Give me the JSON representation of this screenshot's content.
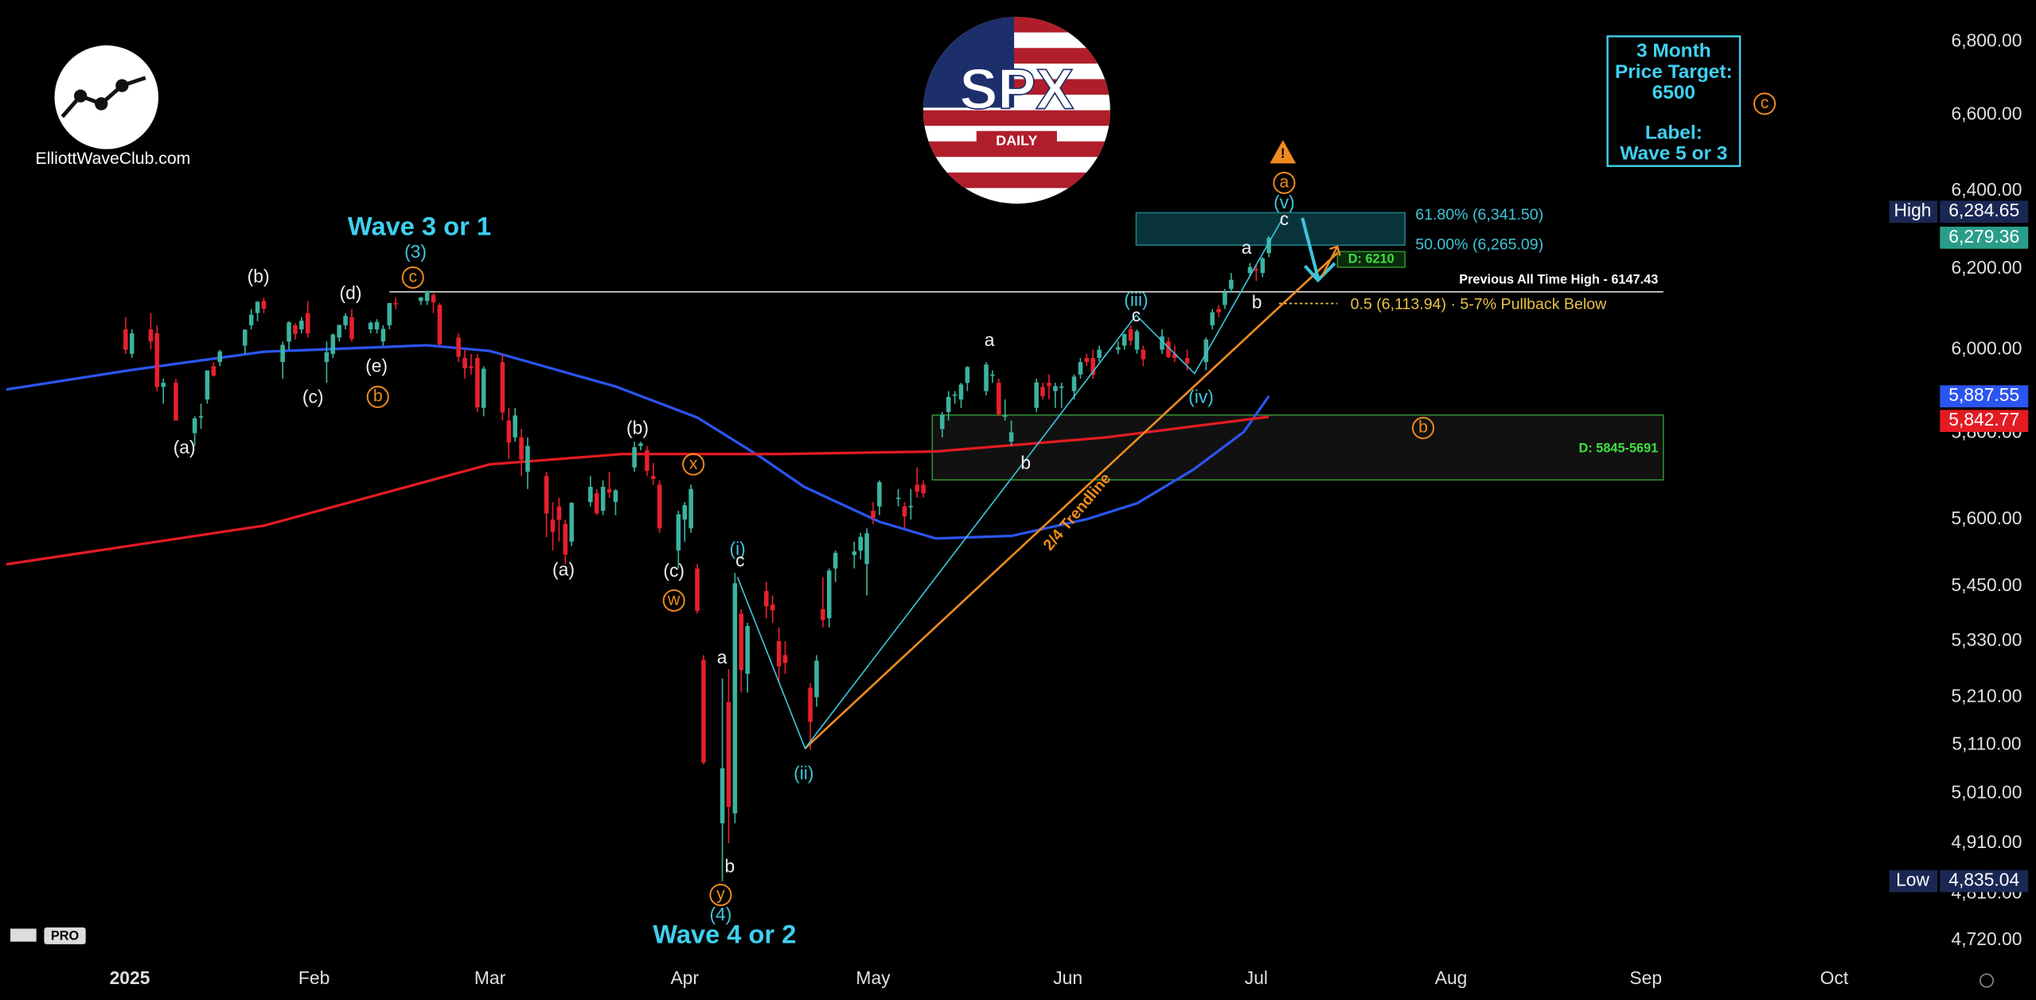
{
  "chart_data": {
    "type": "candlestick",
    "log_scale": true,
    "xlim": [
      -18,
      290
    ],
    "xticks": [
      {
        "value": 1,
        "label": "2025"
      },
      {
        "value": 32,
        "label": "Feb"
      },
      {
        "value": 60,
        "label": "Mar"
      },
      {
        "value": 91,
        "label": "Apr"
      },
      {
        "value": 121,
        "label": "May"
      },
      {
        "value": 152,
        "label": "Jun"
      },
      {
        "value": 182,
        "label": "Jul"
      },
      {
        "value": 213,
        "label": "Aug"
      },
      {
        "value": 244,
        "label": "Sep"
      },
      {
        "value": 274,
        "label": "Oct"
      }
    ],
    "ylim": [
      4683,
      6916
    ],
    "yticks": [
      {
        "value": 6800,
        "label": "6,800.00"
      },
      {
        "value": 6600,
        "label": "6,600.00"
      },
      {
        "value": 6400,
        "label": "6,400.00"
      },
      {
        "value": 6200,
        "label": "6,200.00"
      },
      {
        "value": 6000,
        "label": "6,000.00"
      },
      {
        "value": 5800,
        "label": "5,800.00"
      },
      {
        "value": 5600,
        "label": "5,600.00"
      },
      {
        "value": 5450,
        "label": "5,450.00"
      },
      {
        "value": 5330,
        "label": "5,330.00"
      },
      {
        "value": 5210,
        "label": "5,210.00"
      },
      {
        "value": 5110,
        "label": "5,110.00"
      },
      {
        "value": 5010,
        "label": "5,010.00"
      },
      {
        "value": 4910,
        "label": "4,910.00"
      },
      {
        "value": 4810,
        "label": "4,810.00"
      },
      {
        "value": 4720,
        "label": "4,720.00"
      }
    ],
    "up_color": "#3bb3a0",
    "down_color": "#e8202c",
    "x": [
      2,
      3,
      6,
      7,
      8,
      10,
      13,
      14,
      15,
      16,
      17,
      21,
      22,
      23,
      24,
      27,
      28,
      29,
      30,
      31,
      34,
      35,
      36,
      37,
      38,
      41,
      42,
      43,
      44,
      45,
      49,
      50,
      51,
      52,
      55,
      56,
      57,
      58,
      59,
      62,
      63,
      64,
      65,
      66,
      69,
      70,
      71,
      72,
      73,
      76,
      77,
      78,
      79,
      80,
      83,
      84,
      85,
      86,
      87,
      90,
      91,
      92,
      93,
      94,
      97,
      98,
      99,
      100,
      101,
      104,
      105,
      106,
      107,
      111,
      112,
      113,
      114,
      115,
      118,
      119,
      120,
      121,
      122,
      125,
      126,
      127,
      128,
      129,
      132,
      133,
      134,
      135,
      136,
      139,
      140,
      141,
      142,
      143,
      147,
      148,
      149,
      150,
      151,
      153,
      154,
      155,
      156,
      157,
      160,
      161,
      162,
      163,
      164,
      167,
      168,
      169,
      171,
      174,
      175,
      176,
      177,
      178,
      181,
      182,
      183,
      184
    ],
    "open": [
      6050,
      5990,
      6050,
      6040,
      5910,
      5920,
      5800,
      5840,
      5880,
      5960,
      5970,
      6010,
      6060,
      6090,
      6120,
      5970,
      6020,
      6060,
      6050,
      6090,
      5970,
      5990,
      6030,
      6060,
      6080,
      6050,
      6050,
      6020,
      6060,
      6115,
      6120,
      6120,
      6135,
      6110,
      6030,
      5980,
      5960,
      5980,
      5860,
      5970,
      5830,
      5790,
      5790,
      5710,
      5700,
      5600,
      5630,
      5590,
      5550,
      5640,
      5660,
      5620,
      5670,
      5640,
      5720,
      5770,
      5760,
      5700,
      5680,
      5530,
      5600,
      5580,
      5490,
      5290,
      4950,
      5200,
      4970,
      5390,
      5260,
      5440,
      5410,
      5330,
      5300,
      5230,
      5210,
      5400,
      5380,
      5490,
      5520,
      5530,
      5500,
      5620,
      5630,
      5650,
      5630,
      5630,
      5680,
      5680,
      5810,
      5850,
      5890,
      5880,
      5920,
      5900,
      5940,
      5920,
      5840,
      5780,
      5860,
      5910,
      5920,
      5900,
      5910,
      5900,
      5940,
      5980,
      5980,
      5980,
      6000,
      6010,
      6050,
      6000,
      6000,
      6000,
      6020,
      5990,
      5980,
      5970,
      6060,
      6100,
      6110,
      6150,
      6190,
      6200,
      6190,
      6240
    ],
    "high": [
      6080,
      6050,
      6090,
      6060,
      5930,
      5930,
      5840,
      5870,
      5950,
      5970,
      6000,
      6050,
      6100,
      6120,
      6128,
      6020,
      6070,
      6065,
      6080,
      6120,
      6020,
      6040,
      6060,
      6090,
      6100,
      6070,
      6075,
      6060,
      6115,
      6128,
      6130,
      6147,
      6140,
      6115,
      6040,
      6000,
      5990,
      5990,
      5960,
      5990,
      5860,
      5860,
      5810,
      5790,
      5710,
      5640,
      5650,
      5600,
      5640,
      5700,
      5670,
      5690,
      5710,
      5670,
      5780,
      5780,
      5770,
      5730,
      5690,
      5620,
      5640,
      5680,
      5500,
      5300,
      5250,
      5270,
      5480,
      5400,
      5370,
      5460,
      5430,
      5360,
      5330,
      5240,
      5300,
      5470,
      5490,
      5530,
      5550,
      5570,
      5580,
      5640,
      5690,
      5670,
      5640,
      5670,
      5720,
      5690,
      5850,
      5900,
      5900,
      5920,
      5960,
      5970,
      5950,
      5930,
      5880,
      5830,
      5930,
      5920,
      5940,
      5920,
      5920,
      5940,
      5980,
      5990,
      6000,
      6010,
      6020,
      6040,
      6060,
      6050,
      6010,
      6050,
      6030,
      6010,
      6000,
      6030,
      6100,
      6110,
      6150,
      6190,
      6215,
      6210,
      6230,
      6284.65
    ],
    "low": [
      5990,
      5980,
      6000,
      5900,
      5870,
      5830,
      5770,
      5810,
      5870,
      5935,
      5960,
      5990,
      6050,
      6070,
      6090,
      5930,
      6000,
      6025,
      6040,
      6030,
      5920,
      5980,
      6020,
      6050,
      6020,
      6040,
      6040,
      6010,
      6050,
      6100,
      6110,
      6110,
      6090,
      6010,
      5970,
      5930,
      5940,
      5850,
      5840,
      5830,
      5740,
      5780,
      5700,
      5670,
      5560,
      5530,
      5550,
      5500,
      5540,
      5630,
      5610,
      5610,
      5650,
      5610,
      5710,
      5760,
      5700,
      5680,
      5570,
      5490,
      5550,
      5570,
      5390,
      5070,
      4835.04,
      4910,
      4950,
      5220,
      5220,
      5380,
      5370,
      5240,
      5260,
      5100,
      5190,
      5360,
      5360,
      5460,
      5490,
      5510,
      5430,
      5590,
      5610,
      5630,
      5580,
      5600,
      5650,
      5650,
      5790,
      5830,
      5870,
      5860,
      5900,
      5890,
      5920,
      5840,
      5830,
      5770,
      5850,
      5880,
      5880,
      5860,
      5860,
      5880,
      5930,
      5960,
      5930,
      5970,
      5990,
      6000,
      6010,
      5990,
      5960,
      5990,
      5980,
      5970,
      5950,
      5950,
      6050,
      6080,
      6100,
      6140,
      6180,
      6170,
      6180,
      6230
    ],
    "close": [
      6000,
      6040,
      6020,
      5910,
      5920,
      5830,
      5835,
      5840,
      5950,
      5937,
      5996,
      6049,
      6086,
      6118,
      6101,
      6012,
      6067,
      6039,
      6071,
      6040,
      5994,
      6037,
      6061,
      6083,
      6026,
      6066,
      6068,
      6051,
      6115,
      6114,
      6129,
      6144,
      6117,
      6013,
      5983,
      5955,
      5956,
      5861,
      5954,
      5849,
      5778,
      5842,
      5738,
      5770,
      5614,
      5572,
      5599,
      5521,
      5638,
      5675,
      5614,
      5675,
      5662,
      5667,
      5767,
      5776,
      5712,
      5693,
      5580,
      5612,
      5633,
      5670,
      5396,
      5074,
      5062,
      4983,
      5457,
      5268,
      5363,
      5406,
      5397,
      5276,
      5283,
      5158,
      5288,
      5376,
      5485,
      5525,
      5528,
      5561,
      5569,
      5604,
      5686,
      5650,
      5607,
      5631,
      5664,
      5660,
      5844,
      5886,
      5892,
      5916,
      5958,
      5964,
      5940,
      5845,
      5842,
      5802,
      5921,
      5888,
      5912,
      5912,
      5911,
      5935,
      5970,
      5970,
      5939,
      6000,
      6006,
      6038,
      6022,
      6045,
      5977,
      6033,
      5982,
      5980,
      5967,
      6025,
      6092,
      6092,
      6141,
      6173,
      6205,
      6198,
      6227,
      6279.36
    ],
    "moving_averages": [
      {
        "color": "#2b55f0",
        "x": [
          -17,
          3,
          24,
          50,
          60,
          80,
          93,
          103,
          110,
          122,
          131,
          143,
          155,
          163,
          172,
          180,
          184
        ],
        "values": [
          5904,
          5951,
          5995,
          6011,
          5997,
          5911,
          5837,
          5745,
          5675,
          5595,
          5557,
          5563,
          5601,
          5637,
          5715,
          5803,
          5888
        ]
      },
      {
        "color": "#e41b23",
        "x": [
          -17,
          24,
          60,
          81,
          106,
          131,
          158,
          184
        ],
        "values": [
          5499,
          5586,
          5727,
          5751,
          5751,
          5757,
          5790,
          5839
        ]
      }
    ],
    "price_labels": {
      "names": [
        "High",
        null,
        null,
        null,
        "Low"
      ],
      "values": [
        6284.65,
        6279.36,
        5887.55,
        5842.77,
        4835.04
      ],
      "value_labels": [
        "6,284.65",
        "6,279.36",
        "5,887.55",
        "5,842.77",
        "4,835.04"
      ],
      "colors": [
        "#1b2753",
        "#2a9d8a",
        "#2b55f0",
        "#e41b23",
        "#1b2753"
      ]
    },
    "wave_labels": [
      {
        "text": "(b)",
        "style": "minor"
      },
      {
        "text": "(d)",
        "style": "minor"
      },
      {
        "text": "(a)",
        "style": "minor"
      },
      {
        "text": "(c)",
        "style": "minor"
      },
      {
        "text": "(e)",
        "style": "minor"
      },
      {
        "text": "b",
        "style": "circle"
      },
      {
        "text": "c",
        "style": "circle"
      },
      {
        "text": "(3)",
        "style": "cyan"
      },
      {
        "text": "Wave 3 or 1",
        "style": "big"
      },
      {
        "text": "(b)",
        "style": "minor"
      },
      {
        "text": "(a)",
        "style": "minor"
      },
      {
        "text": "(c)",
        "style": "minor"
      },
      {
        "text": "x",
        "style": "circle"
      },
      {
        "text": "w",
        "style": "circle"
      },
      {
        "text": "a",
        "style": "minor"
      },
      {
        "text": "b",
        "style": "minor"
      },
      {
        "text": "y",
        "style": "circle"
      },
      {
        "text": "(4)",
        "style": "cyan"
      },
      {
        "text": "Wave 4 or 2",
        "style": "big"
      },
      {
        "text": "(i)",
        "style": "cyan"
      },
      {
        "text": "c",
        "style": "minor"
      },
      {
        "text": "(ii)",
        "style": "cyan"
      },
      {
        "text": "a",
        "style": "minor"
      },
      {
        "text": "b",
        "style": "minor"
      },
      {
        "text": "(iii)",
        "style": "cyan"
      },
      {
        "text": "c",
        "style": "minor"
      },
      {
        "text": "(iv)",
        "style": "cyan"
      },
      {
        "text": "a",
        "style": "minor"
      },
      {
        "text": "b",
        "style": "minor"
      },
      {
        "text": "c",
        "style": "minor"
      },
      {
        "text": "(v)",
        "style": "cyan"
      },
      {
        "text": "a",
        "style": "circle"
      },
      {
        "text": "b",
        "style": "circle"
      },
      {
        "text": "c",
        "style": "circle"
      }
    ],
    "overlays": {
      "fib_618": "61.80% (6,341.50)",
      "fib_500": "50.00% (6,265.09)",
      "support": "D: 6210",
      "ath": "Previous All Time High - 6147.43",
      "pullback": "0.5 (6,113.94) · 5-7% Pullback Below",
      "zone": "D: 5845-5691",
      "trendline": "2/4 Trendline"
    },
    "target_box": [
      "3 Month",
      "Price Target:",
      "6500",
      "Label:",
      "Wave 5 or 3"
    ],
    "logo": {
      "site": "ElliottWaveClub.com",
      "ticker": "SPX",
      "timeframe": "DAILY",
      "watermark": "PRO"
    }
  }
}
